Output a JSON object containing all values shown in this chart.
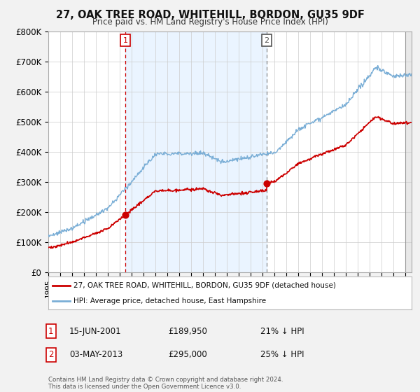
{
  "title": "27, OAK TREE ROAD, WHITEHILL, BORDON, GU35 9DF",
  "subtitle": "Price paid vs. HM Land Registry's House Price Index (HPI)",
  "legend_line1": "27, OAK TREE ROAD, WHITEHILL, BORDON, GU35 9DF (detached house)",
  "legend_line2": "HPI: Average price, detached house, East Hampshire",
  "footnote": "Contains HM Land Registry data © Crown copyright and database right 2024.\nThis data is licensed under the Open Government Licence v3.0.",
  "annotation1_date": "15-JUN-2001",
  "annotation1_price": "£189,950",
  "annotation1_hpi": "21% ↓ HPI",
  "annotation2_date": "03-MAY-2013",
  "annotation2_price": "£295,000",
  "annotation2_hpi": "25% ↓ HPI",
  "sale_color": "#cc0000",
  "hpi_color": "#7aaed6",
  "vline1_color": "#cc0000",
  "vline2_color": "#888888",
  "ylim": [
    0,
    800000
  ],
  "yticks": [
    0,
    100000,
    200000,
    300000,
    400000,
    500000,
    600000,
    700000,
    800000
  ],
  "ytick_labels": [
    "£0",
    "£100K",
    "£200K",
    "£300K",
    "£400K",
    "£500K",
    "£600K",
    "£700K",
    "£800K"
  ],
  "sale1_x": 2001.46,
  "sale1_y": 189950,
  "sale2_x": 2013.34,
  "sale2_y": 295000,
  "xlim_start": 1995.0,
  "xlim_end": 2025.5,
  "background_color": "#f2f2f2",
  "plot_bg": "#ffffff",
  "shade_color": "#ddeeff"
}
